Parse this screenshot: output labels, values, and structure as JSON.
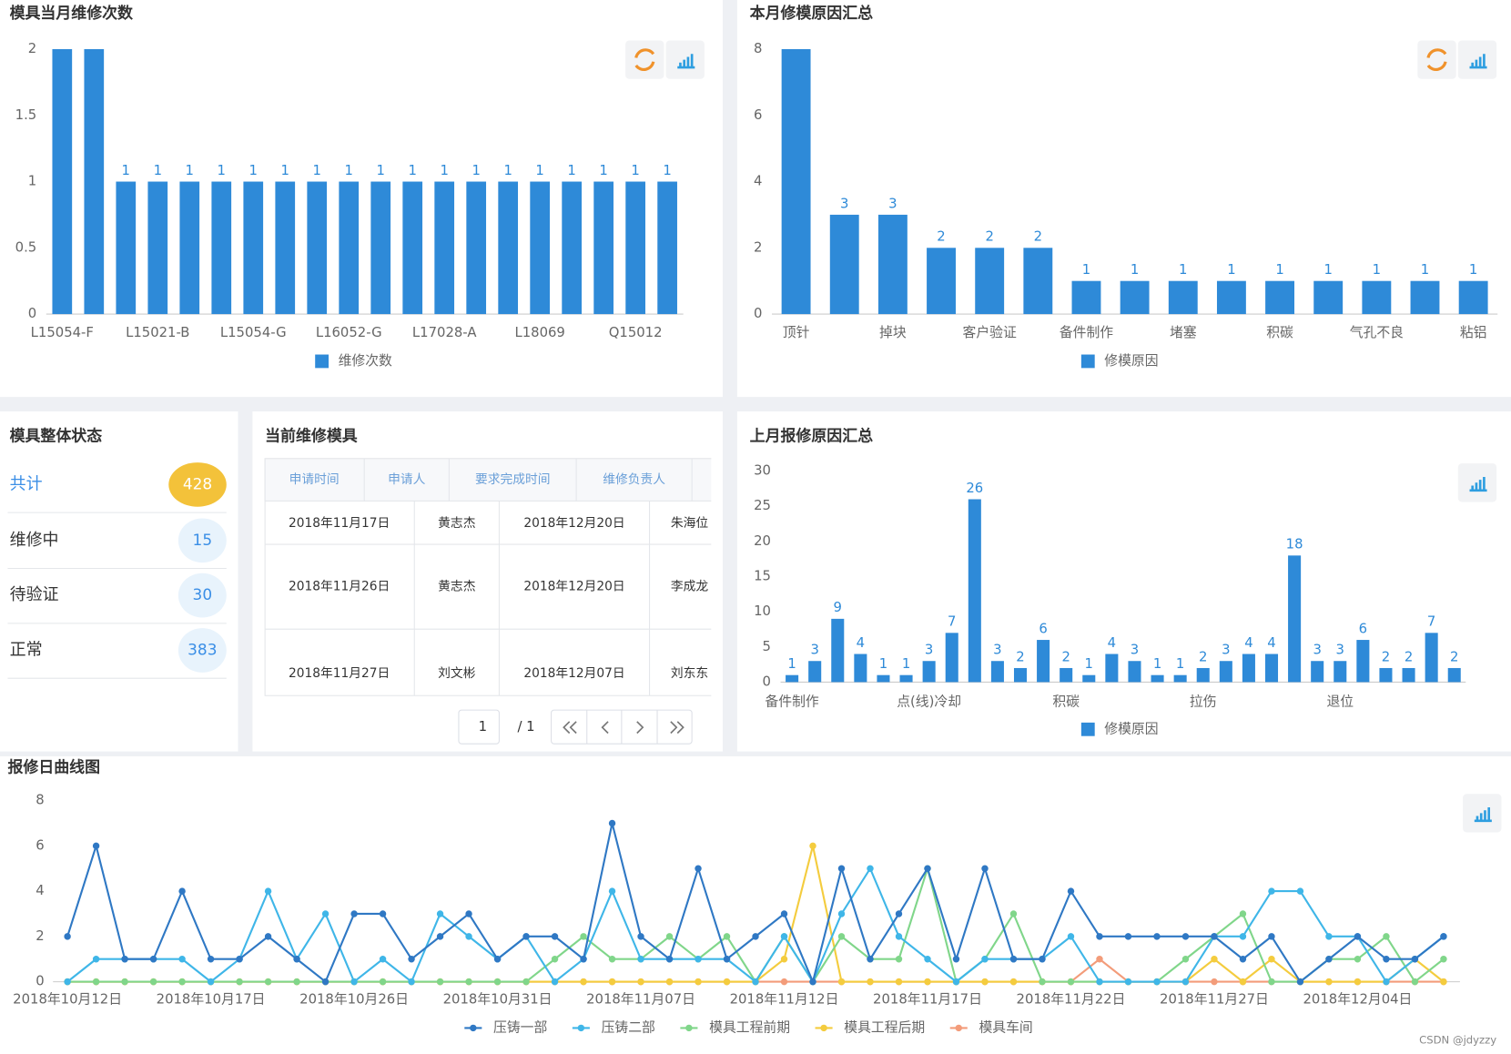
{
  "chart_data": [
    {
      "type": "bar",
      "title": "模具当月维修次数",
      "categories": [
        "L15054-F",
        null,
        null,
        "L15021-B",
        null,
        null,
        "L15054-G",
        null,
        null,
        "L16052-G",
        null,
        null,
        "L17028-A",
        null,
        null,
        "L18069",
        null,
        null,
        "Q15012",
        null
      ],
      "series": [
        {
          "name": "维修次数",
          "color": "#2e8ad8",
          "values": [
            2,
            2,
            1,
            1,
            1,
            1,
            1,
            1,
            1,
            1,
            1,
            1,
            1,
            1,
            1,
            1,
            1,
            1,
            1,
            1
          ]
        }
      ],
      "ylim": [
        0,
        2
      ],
      "yticks": [
        0,
        0.5,
        1,
        1.5,
        2
      ],
      "grid": false,
      "legend": "bottom"
    },
    {
      "type": "bar",
      "title": "本月修模原因汇总",
      "categories": [
        "顶针",
        null,
        "掉块",
        null,
        "客户验证",
        null,
        "备件制作",
        null,
        "堵塞",
        null,
        "积碳",
        null,
        "气孔不良",
        null,
        "粘铝"
      ],
      "series": [
        {
          "name": "修模原因",
          "color": "#2e8ad8",
          "values": [
            8,
            3,
            3,
            2,
            2,
            2,
            1,
            1,
            1,
            1,
            1,
            1,
            1,
            1,
            1
          ]
        }
      ],
      "ylim": [
        0,
        8
      ],
      "yticks": [
        0,
        2,
        4,
        6,
        8
      ],
      "grid": false,
      "legend": "bottom"
    },
    {
      "type": "bar",
      "title": "上月报修原因汇总",
      "categories": [
        "备件制作",
        null,
        null,
        null,
        null,
        null,
        "点(线)冷却",
        null,
        null,
        null,
        null,
        null,
        "积碳",
        null,
        null,
        null,
        null,
        null,
        "拉伤",
        null,
        null,
        null,
        null,
        null,
        "退位",
        null,
        null,
        null,
        null,
        null
      ],
      "series": [
        {
          "name": "修模原因",
          "color": "#2e8ad8",
          "values": [
            1,
            3,
            9,
            4,
            1,
            1,
            3,
            7,
            26,
            3,
            2,
            6,
            2,
            1,
            4,
            3,
            1,
            1,
            2,
            3,
            4,
            4,
            18,
            3,
            3,
            6,
            2,
            2,
            7,
            2
          ]
        }
      ],
      "ylim": [
        0,
        30
      ],
      "yticks": [
        0,
        5,
        10,
        15,
        20,
        25,
        30
      ],
      "grid": false,
      "legend": "bottom"
    },
    {
      "type": "line",
      "title": "报修日曲线图",
      "categories": [
        "2018年10月12日",
        null,
        null,
        null,
        null,
        "2018年10月17日",
        null,
        null,
        null,
        null,
        "2018年10月26日",
        null,
        null,
        null,
        null,
        "2018年10月31日",
        null,
        null,
        null,
        null,
        "2018年11月07日",
        null,
        null,
        null,
        null,
        "2018年11月12日",
        null,
        null,
        null,
        null,
        "2018年11月17日",
        null,
        null,
        null,
        null,
        "2018年11月22日",
        null,
        null,
        null,
        null,
        "2018年11月27日",
        null,
        null,
        null,
        null,
        "2018年12月04日",
        null,
        null,
        null
      ],
      "series": [
        {
          "name": "压铸一部",
          "color": "#2f78c4",
          "values": [
            2,
            6,
            1,
            1,
            4,
            1,
            1,
            2,
            1,
            0,
            3,
            3,
            1,
            2,
            3,
            1,
            2,
            2,
            1,
            7,
            2,
            1,
            5,
            1,
            2,
            3,
            0,
            5,
            1,
            3,
            5,
            1,
            5,
            1,
            1,
            4,
            2,
            2,
            2,
            2,
            2,
            1,
            2,
            0,
            1,
            2,
            1,
            1,
            2
          ]
        },
        {
          "name": "压铸二部",
          "color": "#3fb6e8",
          "values": [
            0,
            1,
            1,
            1,
            1,
            0,
            1,
            4,
            1,
            3,
            0,
            1,
            0,
            3,
            2,
            1,
            2,
            0,
            1,
            4,
            1,
            1,
            1,
            1,
            0,
            2,
            0,
            3,
            5,
            2,
            1,
            0,
            1,
            1,
            1,
            2,
            0,
            0,
            0,
            0,
            2,
            2,
            4,
            4,
            2,
            2,
            0,
            1,
            2
          ]
        },
        {
          "name": "模具工程前期",
          "color": "#80d68a",
          "values": [
            0,
            0,
            0,
            0,
            0,
            0,
            0,
            0,
            0,
            0,
            0,
            0,
            0,
            0,
            0,
            0,
            0,
            1,
            2,
            1,
            1,
            2,
            1,
            2,
            0,
            2,
            0,
            2,
            1,
            1,
            5,
            0,
            1,
            3,
            0,
            0,
            0,
            0,
            0,
            1,
            2,
            3,
            0,
            0,
            1,
            1,
            2,
            0,
            1
          ]
        },
        {
          "name": "模具工程后期",
          "color": "#f4cc3e",
          "values": [
            0,
            0,
            0,
            0,
            0,
            0,
            0,
            0,
            0,
            0,
            0,
            0,
            0,
            0,
            0,
            0,
            0,
            0,
            0,
            0,
            0,
            0,
            0,
            0,
            0,
            1,
            6,
            0,
            0,
            0,
            0,
            0,
            0,
            0,
            0,
            0,
            0,
            0,
            0,
            0,
            1,
            0,
            1,
            0,
            0,
            0,
            0,
            1,
            0
          ]
        },
        {
          "name": "模具车间",
          "color": "#f39c7a",
          "values": [
            0,
            0,
            0,
            0,
            0,
            0,
            0,
            0,
            0,
            0,
            0,
            0,
            0,
            0,
            0,
            0,
            0,
            0,
            0,
            0,
            0,
            0,
            0,
            0,
            0,
            0,
            0,
            0,
            0,
            0,
            0,
            0,
            0,
            0,
            0,
            0,
            1,
            0,
            0,
            0,
            0,
            0,
            0,
            0,
            0,
            0,
            0,
            0,
            0
          ]
        }
      ],
      "ylim": [
        0,
        8
      ],
      "yticks": [
        0,
        2,
        4,
        6,
        8
      ],
      "grid": false,
      "legend": "bottom"
    }
  ],
  "status": {
    "title": "模具整体状态",
    "items": [
      {
        "label": "共计",
        "count": 428
      },
      {
        "label": "维修中",
        "count": 15
      },
      {
        "label": "待验证",
        "count": 30
      },
      {
        "label": "正常",
        "count": 383
      }
    ]
  },
  "table": {
    "title": "当前维修模具",
    "headers": [
      "申请时间",
      "申请人",
      "要求完成时间",
      "维修负责人"
    ],
    "rows": [
      [
        "2018年11月17日",
        "黄志杰",
        "2018年12月20日",
        "朱海位"
      ],
      [
        "2018年11月26日",
        "黄志杰",
        "2018年12月20日",
        "李成龙"
      ],
      [
        "2018年11月27日",
        "刘文彬",
        "2018年12月07日",
        "刘东东"
      ]
    ],
    "pagination": {
      "current": 1,
      "of": "/ 1"
    }
  },
  "watermark": "CSDN @jdyzzy"
}
